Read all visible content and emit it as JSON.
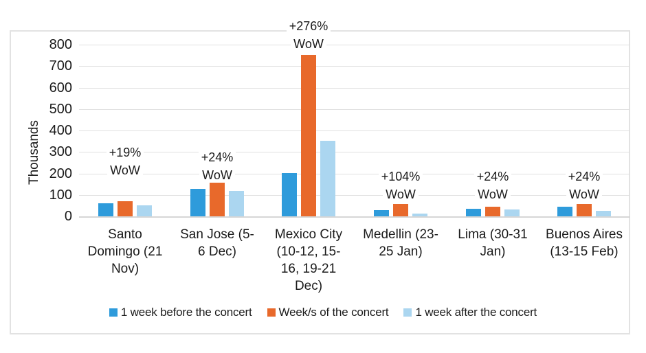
{
  "chart_data": {
    "type": "bar",
    "title": "",
    "ylabel": "Thousands",
    "ylim": [
      0,
      800
    ],
    "ytick_step": 100,
    "yticks": [
      800,
      700,
      600,
      500,
      400,
      300,
      200,
      100,
      0
    ],
    "grid": true,
    "legend_position": "bottom",
    "categories": [
      "Santo Domingo (21 Nov)",
      "San Jose (5-6 Dec)",
      "Mexico City (10-12, 15-16, 19-21 Dec)",
      "Medellin (23-25 Jan)",
      "Lima (30-31 Jan)",
      "Buenos Aires (13-15 Feb)"
    ],
    "category_label_lines": [
      [
        "Santo",
        "Domingo (21",
        "Nov)"
      ],
      [
        "San Jose (5-",
        "6 Dec)"
      ],
      [
        "Mexico City",
        "(10-12, 15-",
        "16, 19-21",
        "Dec)"
      ],
      [
        "Medellin (23-",
        "25 Jan)"
      ],
      [
        "Lima (30-31",
        "Jan)"
      ],
      [
        "Buenos Aires",
        "(13-15 Feb)"
      ]
    ],
    "series": [
      {
        "name": "1 week before the concert",
        "color": "#2E9BDB",
        "values": [
          60,
          127,
          200,
          28,
          36,
          45
        ]
      },
      {
        "name": "Week/s of the concert",
        "color": "#E8692B",
        "values": [
          71,
          157,
          752,
          57,
          45,
          56
        ]
      },
      {
        "name": "1 week after the concert",
        "color": "#ABD6F0",
        "values": [
          50,
          117,
          352,
          13,
          33,
          26
        ]
      }
    ],
    "annotations": [
      {
        "pct": "+19%",
        "label": "WoW",
        "y": 213
      },
      {
        "pct": "+24%",
        "label": "WoW",
        "y": 220
      },
      {
        "pct": "+276%",
        "label": "WoW",
        "y": 29
      },
      {
        "pct": "+104%",
        "label": "WoW",
        "y": 248
      },
      {
        "pct": "+24%",
        "label": "WoW",
        "y": 248
      },
      {
        "pct": "+24%",
        "label": "WoW",
        "y": 248
      }
    ]
  },
  "colors": {
    "background": "#FFFFFF",
    "frame_border": "#E2E2E2",
    "gridline": "#E0E0E0",
    "axis_line": "#D6D6D6",
    "text": "#1A1A1A"
  }
}
